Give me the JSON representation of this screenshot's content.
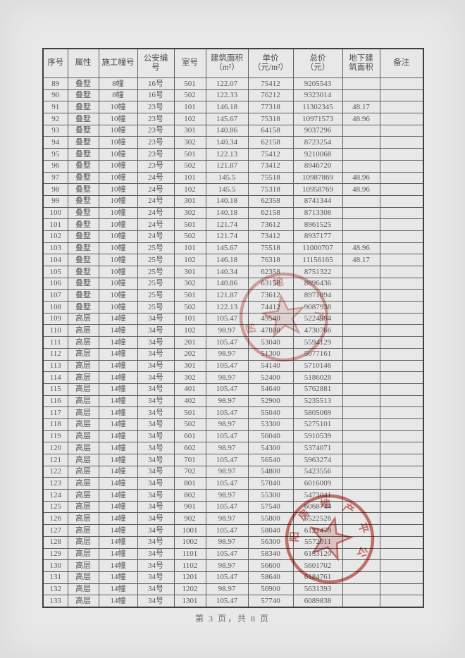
{
  "page": {
    "footer": "第 3 页，共 8 页"
  },
  "table": {
    "column_keys": [
      "serial-no",
      "property-type",
      "construction-building-no",
      "police-no",
      "room-no",
      "floor-area",
      "unit-price",
      "total-price",
      "basement-area",
      "remark"
    ],
    "headers": [
      [
        "序号"
      ],
      [
        "属性"
      ],
      [
        "施工幢号"
      ],
      [
        "公安编",
        "号"
      ],
      [
        "室号"
      ],
      [
        "建筑面积",
        "（m²）"
      ],
      [
        "单价",
        "（元/m²）"
      ],
      [
        "总价",
        "（元）"
      ],
      [
        "地下建",
        "筑面积"
      ],
      [
        "备注"
      ]
    ],
    "rows": [
      [
        "89",
        "叠墅",
        "8幢",
        "16号",
        "501",
        "122.07",
        "75412",
        "9205543",
        "",
        ""
      ],
      [
        "90",
        "叠墅",
        "8幢",
        "16号",
        "502",
        "122.33",
        "76212",
        "9323014",
        "",
        ""
      ],
      [
        "91",
        "叠墅",
        "10幢",
        "23号",
        "101",
        "146.18",
        "77318",
        "11302345",
        "48.17",
        ""
      ],
      [
        "92",
        "叠墅",
        "10幢",
        "23号",
        "102",
        "145.67",
        "75318",
        "10971573",
        "48.96",
        ""
      ],
      [
        "93",
        "叠墅",
        "10幢",
        "23号",
        "301",
        "140.86",
        "64158",
        "9037296",
        "",
        ""
      ],
      [
        "94",
        "叠墅",
        "10幢",
        "23号",
        "302",
        "140.34",
        "62158",
        "8723254",
        "",
        ""
      ],
      [
        "95",
        "叠墅",
        "10幢",
        "23号",
        "501",
        "122.13",
        "75412",
        "9210068",
        "",
        ""
      ],
      [
        "96",
        "叠墅",
        "10幢",
        "23号",
        "502",
        "121.87",
        "73412",
        "8946720",
        "",
        ""
      ],
      [
        "97",
        "叠墅",
        "10幢",
        "24号",
        "101",
        "145.5",
        "75518",
        "10987869",
        "48.96",
        ""
      ],
      [
        "98",
        "叠墅",
        "10幢",
        "24号",
        "102",
        "145.5",
        "75318",
        "10958769",
        "48.96",
        ""
      ],
      [
        "99",
        "叠墅",
        "10幢",
        "24号",
        "301",
        "140.18",
        "62358",
        "8741344",
        "",
        ""
      ],
      [
        "100",
        "叠墅",
        "10幢",
        "24号",
        "302",
        "140.18",
        "62158",
        "8713308",
        "",
        ""
      ],
      [
        "101",
        "叠墅",
        "10幢",
        "24号",
        "501",
        "121.74",
        "73612",
        "8961525",
        "",
        ""
      ],
      [
        "102",
        "叠墅",
        "10幢",
        "24号",
        "502",
        "121.74",
        "73412",
        "8937177",
        "",
        ""
      ],
      [
        "103",
        "叠墅",
        "10幢",
        "25号",
        "101",
        "145.67",
        "75518",
        "11000707",
        "48.96",
        ""
      ],
      [
        "104",
        "叠墅",
        "10幢",
        "25号",
        "102",
        "146.18",
        "76318",
        "11156165",
        "48.17",
        ""
      ],
      [
        "105",
        "叠墅",
        "10幢",
        "25号",
        "301",
        "140.34",
        "62358",
        "8751322",
        "",
        ""
      ],
      [
        "106",
        "叠墅",
        "10幢",
        "25号",
        "302",
        "140.86",
        "63158",
        "8896436",
        "",
        ""
      ],
      [
        "107",
        "叠墅",
        "10幢",
        "25号",
        "501",
        "121.87",
        "73612",
        "8971094",
        "",
        ""
      ],
      [
        "108",
        "叠墅",
        "10幢",
        "25号",
        "502",
        "122.13",
        "74412",
        "9087938",
        "",
        ""
      ],
      [
        "109",
        "高层",
        "14幢",
        "34号",
        "101",
        "105.47",
        "49540",
        "5224984",
        "",
        ""
      ],
      [
        "110",
        "高层",
        "14幢",
        "34号",
        "102",
        "98.97",
        "47800",
        "4730766",
        "",
        ""
      ],
      [
        "111",
        "高层",
        "14幢",
        "34号",
        "201",
        "105.47",
        "53040",
        "5594129",
        "",
        ""
      ],
      [
        "112",
        "高层",
        "14幢",
        "34号",
        "202",
        "98.97",
        "51300",
        "5077161",
        "",
        ""
      ],
      [
        "113",
        "高层",
        "14幢",
        "34号",
        "301",
        "105.47",
        "54140",
        "5710146",
        "",
        ""
      ],
      [
        "114",
        "高层",
        "14幢",
        "34号",
        "302",
        "98.97",
        "52400",
        "5186028",
        "",
        ""
      ],
      [
        "115",
        "高层",
        "14幢",
        "34号",
        "401",
        "105.47",
        "54640",
        "5762881",
        "",
        ""
      ],
      [
        "116",
        "高层",
        "14幢",
        "34号",
        "402",
        "98.97",
        "52900",
        "5235513",
        "",
        ""
      ],
      [
        "117",
        "高层",
        "14幢",
        "34号",
        "501",
        "105.47",
        "55040",
        "5805069",
        "",
        ""
      ],
      [
        "118",
        "高层",
        "14幢",
        "34号",
        "502",
        "98.97",
        "53300",
        "5275101",
        "",
        ""
      ],
      [
        "119",
        "高层",
        "14幢",
        "34号",
        "601",
        "105.47",
        "56040",
        "5910539",
        "",
        ""
      ],
      [
        "120",
        "高层",
        "14幢",
        "34号",
        "602",
        "98.97",
        "54300",
        "5374071",
        "",
        ""
      ],
      [
        "121",
        "高层",
        "14幢",
        "34号",
        "701",
        "105.47",
        "56540",
        "5963274",
        "",
        ""
      ],
      [
        "122",
        "高层",
        "14幢",
        "34号",
        "702",
        "98.97",
        "54800",
        "5423556",
        "",
        ""
      ],
      [
        "123",
        "高层",
        "14幢",
        "34号",
        "801",
        "105.47",
        "57040",
        "6016009",
        "",
        ""
      ],
      [
        "124",
        "高层",
        "14幢",
        "34号",
        "802",
        "98.97",
        "55300",
        "5473041",
        "",
        ""
      ],
      [
        "125",
        "高层",
        "14幢",
        "34号",
        "901",
        "105.47",
        "57540",
        "6068744",
        "",
        ""
      ],
      [
        "126",
        "高层",
        "14幢",
        "34号",
        "902",
        "98.97",
        "55800",
        "5522526",
        "",
        ""
      ],
      [
        "127",
        "高层",
        "14幢",
        "34号",
        "1001",
        "105.47",
        "58040",
        "6121479",
        "",
        ""
      ],
      [
        "128",
        "高层",
        "14幢",
        "34号",
        "1002",
        "98.97",
        "56300",
        "5572011",
        "",
        ""
      ],
      [
        "129",
        "高层",
        "14幢",
        "34号",
        "1101",
        "105.47",
        "58340",
        "6153120",
        "",
        ""
      ],
      [
        "130",
        "高层",
        "14幢",
        "34号",
        "1102",
        "98.97",
        "56600",
        "5601702",
        "",
        ""
      ],
      [
        "131",
        "高层",
        "14幢",
        "34号",
        "1201",
        "105.47",
        "58640",
        "6184761",
        "",
        ""
      ],
      [
        "132",
        "高层",
        "14幢",
        "34号",
        "1202",
        "98.97",
        "56900",
        "5631393",
        "",
        ""
      ],
      [
        "133",
        "高层",
        "14幢",
        "34号",
        "1301",
        "105.47",
        "57740",
        "6089838",
        "",
        ""
      ]
    ]
  },
  "stamps": [
    {
      "name": "official-seal-upper",
      "ring_text": "房地产",
      "color": "#c4594f"
    },
    {
      "name": "official-seal-lower",
      "ring_text": "阳房地产平公",
      "color": "#c4594f"
    }
  ]
}
